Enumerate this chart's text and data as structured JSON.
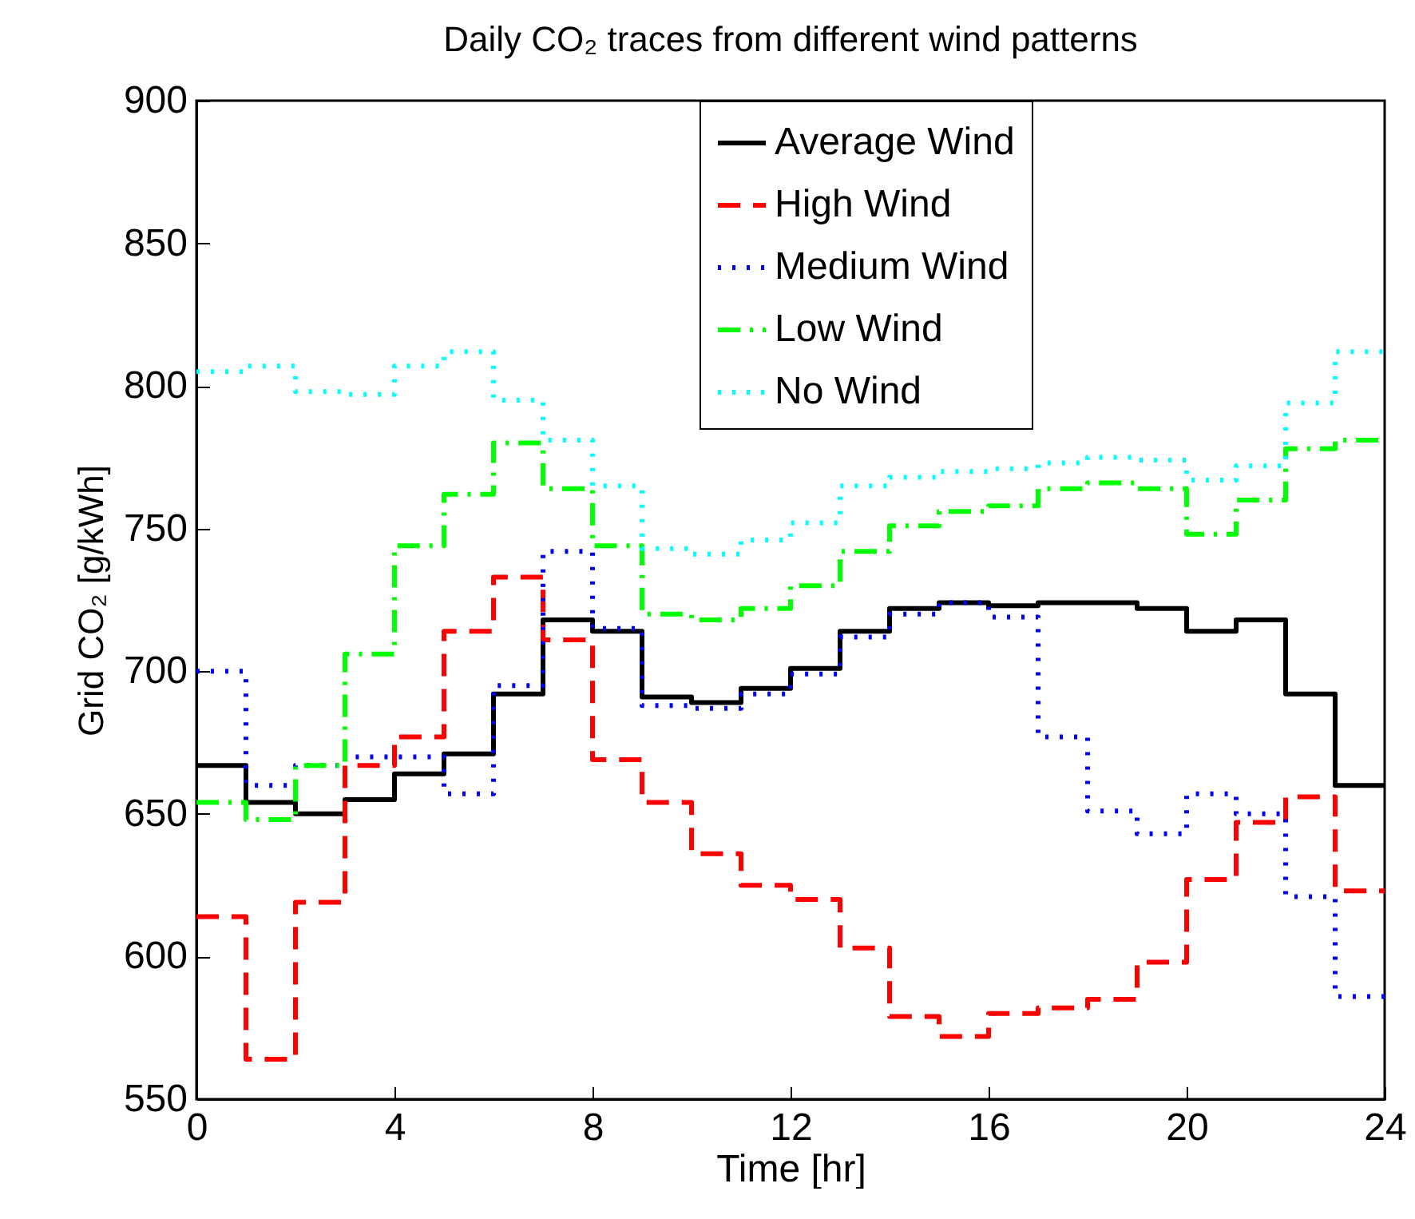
{
  "chart_data": {
    "type": "step",
    "title": "Daily CO₂ traces from different wind patterns",
    "xlabel": "Time [hr]",
    "ylabel": "Grid CO₂ [g/kWh]",
    "x": [
      0,
      1,
      2,
      3,
      4,
      5,
      6,
      7,
      8,
      9,
      10,
      11,
      12,
      13,
      14,
      15,
      16,
      17,
      18,
      19,
      20,
      21,
      22,
      23,
      24
    ],
    "xlim": [
      0,
      24
    ],
    "xticks": [
      0,
      4,
      8,
      12,
      16,
      20,
      24
    ],
    "ylim": [
      550,
      900
    ],
    "yticks": [
      550,
      600,
      650,
      700,
      750,
      800,
      850,
      900
    ],
    "grid": false,
    "legend": "top right",
    "series": [
      {
        "name": "Average Wind",
        "color": "#000000",
        "line_style": "solid",
        "values": [
          667,
          654,
          650,
          655,
          664,
          671,
          692,
          718,
          714,
          691,
          689,
          694,
          701,
          714,
          722,
          724,
          723,
          724,
          724,
          722,
          714,
          718,
          692,
          660,
          660
        ]
      },
      {
        "name": "High Wind",
        "color": "#ff0000",
        "line_style": "dashed",
        "values": [
          614,
          564,
          619,
          667,
          677,
          714,
          733,
          711,
          669,
          654,
          636,
          625,
          620,
          603,
          579,
          572,
          580,
          582,
          585,
          598,
          627,
          647,
          656,
          623,
          623
        ]
      },
      {
        "name": "Medium Wind",
        "color": "#0000ff",
        "line_style": "dotted",
        "values": [
          700,
          660,
          667,
          670,
          670,
          657,
          695,
          742,
          715,
          688,
          687,
          692,
          699,
          712,
          720,
          724,
          719,
          677,
          651,
          643,
          657,
          650,
          621,
          586,
          586
        ]
      },
      {
        "name": "Low Wind",
        "color": "#00ff00",
        "line_style": "dashdot",
        "values": [
          654,
          648,
          667,
          706,
          744,
          762,
          780,
          764,
          744,
          720,
          718,
          722,
          730,
          742,
          751,
          756,
          758,
          764,
          766,
          764,
          748,
          760,
          778,
          781,
          781
        ]
      },
      {
        "name": "No Wind",
        "color": "#00ffff",
        "line_style": "dotted",
        "values": [
          805,
          807,
          798,
          797,
          807,
          812,
          795,
          781,
          765,
          743,
          741,
          746,
          752,
          765,
          768,
          770,
          771,
          773,
          775,
          774,
          767,
          772,
          794,
          812,
          812
        ]
      }
    ]
  }
}
